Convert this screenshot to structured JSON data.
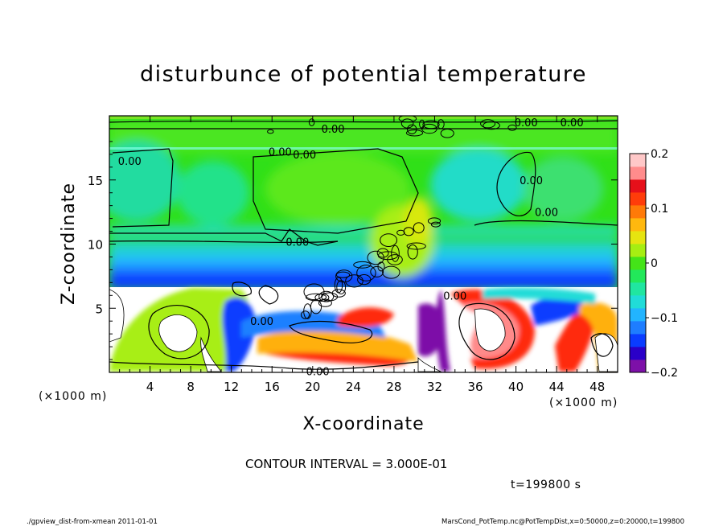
{
  "chart_data": {
    "type": "heatmap",
    "title": "disturbunce of potential temperature",
    "xlabel": "X-coordinate",
    "ylabel": "Z-coordinate",
    "x_unit": "(×1000 m)",
    "x_unit_right": "(×1000 m)",
    "xlim": [
      0,
      50
    ],
    "ylim": [
      0,
      20
    ],
    "x_ticks": [
      4,
      8,
      12,
      16,
      20,
      24,
      28,
      32,
      36,
      40,
      44,
      48
    ],
    "y_ticks": [
      5,
      10,
      15
    ],
    "colorbar": {
      "range": [
        -0.2,
        0.2
      ],
      "ticks": [
        {
          "value": 0.2,
          "label": "0.2"
        },
        {
          "value": 0.1,
          "label": "0.1"
        },
        {
          "value": 0,
          "label": "0"
        },
        {
          "value": -0.1,
          "label": "−0.1"
        },
        {
          "value": -0.2,
          "label": "−0.2"
        }
      ],
      "colors": [
        "#7d10a8",
        "#2a00c8",
        "#0a3cff",
        "#1e7dff",
        "#22b4ff",
        "#20dcd8",
        "#20e6a0",
        "#22e85a",
        "#44e418",
        "#a6ee12",
        "#e6e410",
        "#ffb80e",
        "#ff7a08",
        "#ff3c0a",
        "#e6101a",
        "#ff8c8c",
        "#ffc8c8"
      ]
    },
    "contour_labels": [
      {
        "x": 2.0,
        "z": 16.5,
        "text": "0.00"
      },
      {
        "x": 16.8,
        "z": 17.2,
        "text": "0.00"
      },
      {
        "x": 19.2,
        "z": 17.0,
        "text": "0.00"
      },
      {
        "x": 18.5,
        "z": 10.2,
        "text": "0.00"
      },
      {
        "x": 22.0,
        "z": 19.0,
        "text": "0.00"
      },
      {
        "x": 41.5,
        "z": 15.0,
        "text": "0.00"
      },
      {
        "x": 43.0,
        "z": 12.5,
        "text": "0.00"
      },
      {
        "x": 41.0,
        "z": 19.5,
        "text": "0.00"
      },
      {
        "x": 45.5,
        "z": 19.5,
        "text": "0.00"
      },
      {
        "x": 20.5,
        "z": 0.1,
        "text": "0.00"
      },
      {
        "x": 15.0,
        "z": 4.0,
        "text": "0.00"
      },
      {
        "x": 34.0,
        "z": 6.0,
        "text": "0.00"
      }
    ]
  },
  "annotations": {
    "contour_interval": "CONTOUR INTERVAL = 3.000E-01",
    "time": "t=199800 s",
    "footer_left": "./gpview_dist-from-xmean  2011-01-01",
    "footer_right": "MarsCond_PotTemp.nc@PotTempDist,x=0:50000,z=0:20000,t=199800"
  }
}
